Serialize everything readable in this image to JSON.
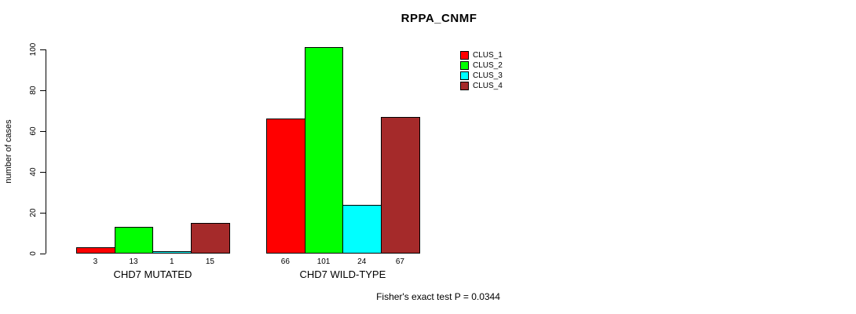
{
  "chart_data": {
    "type": "bar",
    "title": "RPPA_CNMF",
    "ylabel": "number of cases",
    "xlabel": "",
    "ylim": [
      0,
      100
    ],
    "yticks": [
      0,
      20,
      40,
      60,
      80,
      100
    ],
    "grid": false,
    "legend_position": "top-right",
    "categories": [
      "CHD7 MUTATED",
      "CHD7 WILD-TYPE"
    ],
    "series": [
      {
        "name": "CLUS_1",
        "color": "#ff0000",
        "values": [
          3,
          66
        ]
      },
      {
        "name": "CLUS_2",
        "color": "#00ff00",
        "values": [
          13,
          101
        ]
      },
      {
        "name": "CLUS_3",
        "color": "#00ffff",
        "values": [
          1,
          24
        ]
      },
      {
        "name": "CLUS_4",
        "color": "#a52a2a",
        "values": [
          15,
          67
        ]
      }
    ],
    "bar_value_labels_shown": true,
    "annotation": "Fisher's exact test P = 0.0344"
  }
}
